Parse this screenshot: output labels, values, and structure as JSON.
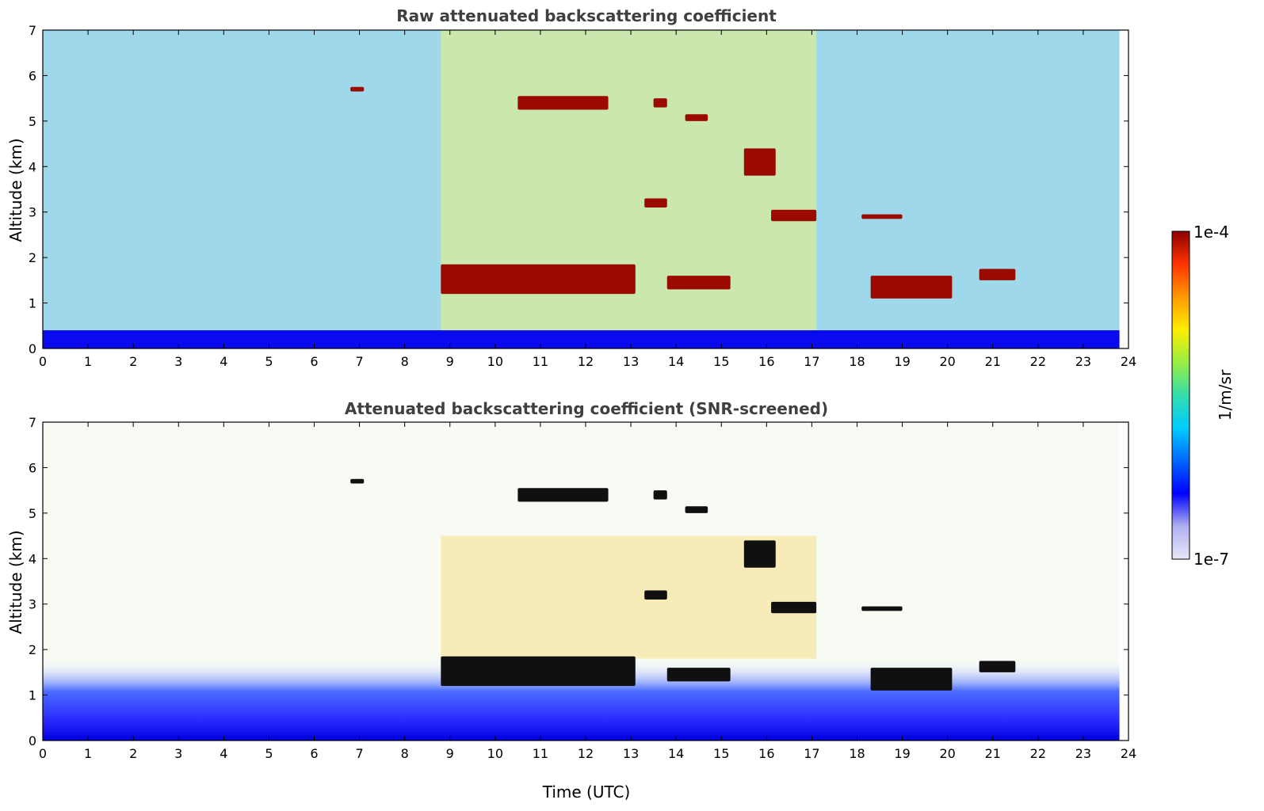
{
  "chart_data": [
    {
      "type": "heatmap",
      "title": "Raw attenuated backscattering coefficient",
      "xlabel": "",
      "ylabel": "Altitude (km)",
      "xlim": [
        0,
        24
      ],
      "ylim": [
        0,
        7
      ],
      "x_ticks": [
        "0",
        "1",
        "2",
        "3",
        "4",
        "5",
        "6",
        "7",
        "8",
        "9",
        "10",
        "11",
        "12",
        "13",
        "14",
        "15",
        "16",
        "17",
        "18",
        "19",
        "20",
        "21",
        "22",
        "23",
        "24"
      ],
      "y_ticks": [
        "0",
        "1",
        "2",
        "3",
        "4",
        "5",
        "6",
        "7"
      ],
      "data_end_time": 23.8,
      "features": [
        {
          "kind": "surface_layer",
          "t0": 0,
          "t1": 23.8,
          "z0": 0,
          "z1": 0.4
        },
        {
          "kind": "cloud",
          "t0": 8.8,
          "t1": 13.1,
          "z0": 1.2,
          "z1": 1.85
        },
        {
          "kind": "cloud",
          "t0": 13.8,
          "t1": 15.2,
          "z0": 1.3,
          "z1": 1.6
        },
        {
          "kind": "cloud",
          "t0": 18.3,
          "t1": 20.1,
          "z0": 1.1,
          "z1": 1.6
        },
        {
          "kind": "cloud",
          "t0": 20.7,
          "t1": 21.5,
          "z0": 1.5,
          "z1": 1.75
        },
        {
          "kind": "cloud",
          "t0": 13.3,
          "t1": 13.8,
          "z0": 3.1,
          "z1": 3.3
        },
        {
          "kind": "cloud",
          "t0": 16.1,
          "t1": 17.1,
          "z0": 2.8,
          "z1": 3.05
        },
        {
          "kind": "cloud",
          "t0": 18.1,
          "t1": 19.0,
          "z0": 2.85,
          "z1": 2.95
        },
        {
          "kind": "cloud",
          "t0": 15.5,
          "t1": 16.2,
          "z0": 3.8,
          "z1": 4.4
        },
        {
          "kind": "cloud",
          "t0": 10.5,
          "t1": 12.5,
          "z0": 5.25,
          "z1": 5.55
        },
        {
          "kind": "cloud",
          "t0": 13.5,
          "t1": 13.8,
          "z0": 5.3,
          "z1": 5.5
        },
        {
          "kind": "cloud",
          "t0": 14.2,
          "t1": 14.7,
          "z0": 5.0,
          "z1": 5.15
        },
        {
          "kind": "cloud",
          "t0": 6.8,
          "t1": 7.1,
          "z0": 5.65,
          "z1": 5.75
        }
      ]
    },
    {
      "type": "heatmap",
      "title": "Attenuated backscattering coefficient (SNR-screened)",
      "xlabel": "Time (UTC)",
      "ylabel": "Altitude (km)",
      "xlim": [
        0,
        24
      ],
      "ylim": [
        0,
        7
      ],
      "x_ticks": [
        "0",
        "1",
        "2",
        "3",
        "4",
        "5",
        "6",
        "7",
        "8",
        "9",
        "10",
        "11",
        "12",
        "13",
        "14",
        "15",
        "16",
        "17",
        "18",
        "19",
        "20",
        "21",
        "22",
        "23",
        "24"
      ],
      "y_ticks": [
        "0",
        "1",
        "2",
        "3",
        "4",
        "5",
        "6",
        "7"
      ],
      "data_end_time": 23.8,
      "features": [
        {
          "kind": "boundary_layer",
          "t0": 0,
          "t1": 23.8,
          "z0": 0,
          "z1": 1.8
        },
        {
          "kind": "cloud",
          "t0": 8.8,
          "t1": 13.1,
          "z0": 1.2,
          "z1": 1.85
        },
        {
          "kind": "cloud",
          "t0": 13.8,
          "t1": 15.2,
          "z0": 1.3,
          "z1": 1.6
        },
        {
          "kind": "cloud",
          "t0": 18.3,
          "t1": 20.1,
          "z0": 1.1,
          "z1": 1.6
        },
        {
          "kind": "cloud",
          "t0": 20.7,
          "t1": 21.5,
          "z0": 1.5,
          "z1": 1.75
        },
        {
          "kind": "cloud",
          "t0": 13.3,
          "t1": 13.8,
          "z0": 3.1,
          "z1": 3.3
        },
        {
          "kind": "cloud",
          "t0": 16.1,
          "t1": 17.1,
          "z0": 2.8,
          "z1": 3.05
        },
        {
          "kind": "cloud",
          "t0": 18.1,
          "t1": 19.0,
          "z0": 2.85,
          "z1": 2.95
        },
        {
          "kind": "cloud",
          "t0": 15.5,
          "t1": 16.2,
          "z0": 3.8,
          "z1": 4.4
        },
        {
          "kind": "cloud",
          "t0": 10.5,
          "t1": 12.5,
          "z0": 5.25,
          "z1": 5.55
        },
        {
          "kind": "cloud",
          "t0": 13.5,
          "t1": 13.8,
          "z0": 5.3,
          "z1": 5.5
        },
        {
          "kind": "cloud",
          "t0": 14.2,
          "t1": 14.7,
          "z0": 5.0,
          "z1": 5.15
        },
        {
          "kind": "cloud",
          "t0": 6.8,
          "t1": 7.1,
          "z0": 5.65,
          "z1": 5.75
        }
      ]
    }
  ],
  "colorbar": {
    "max_label": "1e-4",
    "min_label": "1e-7",
    "unit_label": "1/m/sr",
    "colormap": [
      "#e8e8f8",
      "#b0b0f0",
      "#0000ff",
      "#0066ff",
      "#00ccff",
      "#33ddaa",
      "#99ee44",
      "#ffee00",
      "#ff9900",
      "#ff3300",
      "#8b0000"
    ]
  }
}
